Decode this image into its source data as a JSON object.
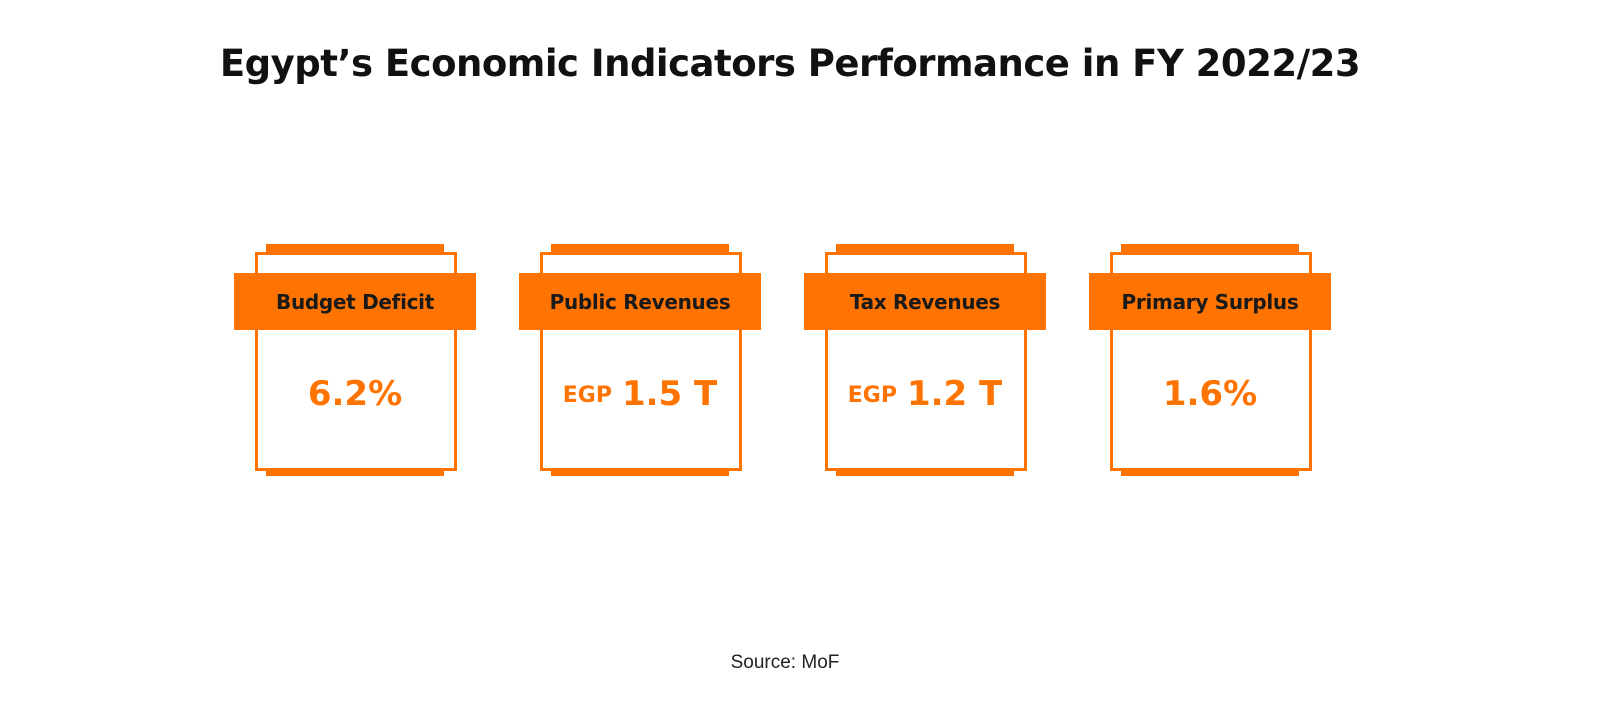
{
  "title": "Egypt’s Economic Indicators Performance in FY 2022/23",
  "accent_color": "#ff7300",
  "indicators": [
    {
      "label": "Budget Deficit",
      "prefix": "",
      "value": "6.2%"
    },
    {
      "label": "Public Revenues",
      "prefix": "EGP",
      "value": "1.5 T"
    },
    {
      "label": "Tax Revenues",
      "prefix": "EGP",
      "value": "1.2 T"
    },
    {
      "label": "Primary Surplus",
      "prefix": "",
      "value": "1.6%"
    }
  ],
  "source": "Source: MoF"
}
